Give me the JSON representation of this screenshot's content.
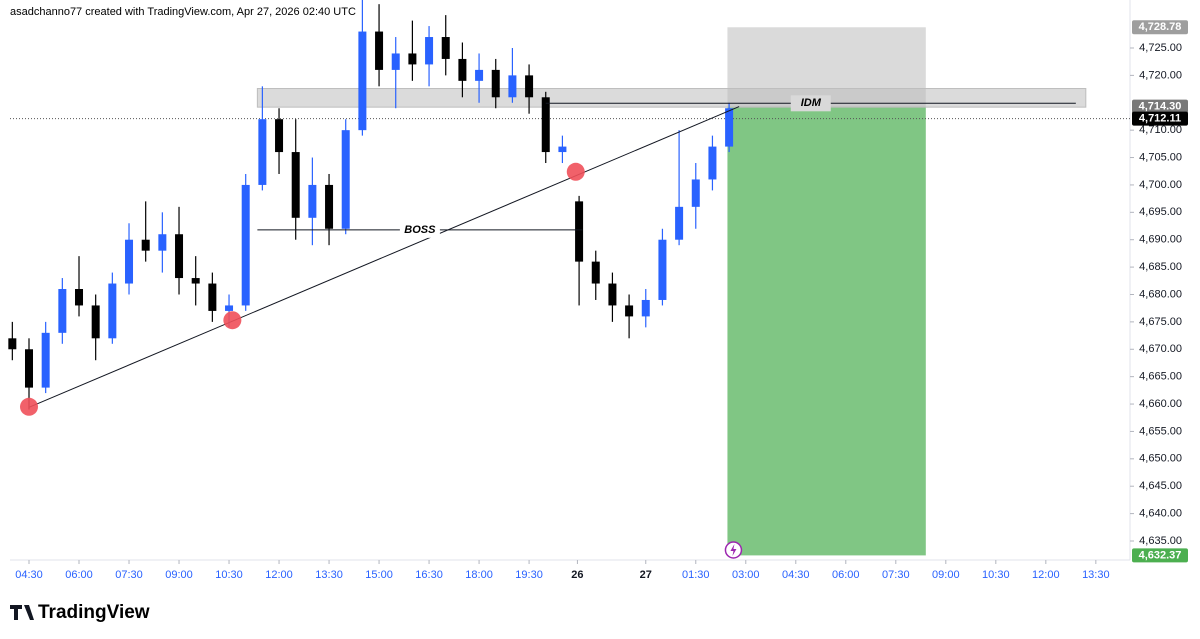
{
  "chart_data": {
    "type": "candlestick",
    "header": "asadchanno77 created with TradingView.com, Apr 27, 2026 02:40 UTC",
    "brand": "TradingView",
    "up_color": "#2962ff",
    "down_color": "#000000",
    "xlim": [
      -1.14,
      66.05
    ],
    "ylim": [
      4631.53,
      4733.76
    ],
    "xticks": [
      {
        "value": 0,
        "label": "04:30"
      },
      {
        "value": 3,
        "label": "06:00"
      },
      {
        "value": 6,
        "label": "07:30"
      },
      {
        "value": 9,
        "label": "09:00"
      },
      {
        "value": 12,
        "label": "10:30"
      },
      {
        "value": 15,
        "label": "12:00"
      },
      {
        "value": 18,
        "label": "13:30"
      },
      {
        "value": 21,
        "label": "15:00"
      },
      {
        "value": 24,
        "label": "16:30"
      },
      {
        "value": 27,
        "label": "18:00"
      },
      {
        "value": 30,
        "label": "19:30"
      },
      {
        "value": 32.9,
        "label": "26"
      },
      {
        "value": 37,
        "label": "27"
      },
      {
        "value": 40,
        "label": "01:30"
      },
      {
        "value": 43,
        "label": "03:00"
      },
      {
        "value": 46,
        "label": "04:30"
      },
      {
        "value": 49,
        "label": "06:00"
      },
      {
        "value": 52,
        "label": "07:30"
      },
      {
        "value": 55,
        "label": "09:00"
      },
      {
        "value": 58,
        "label": "10:30"
      },
      {
        "value": 61,
        "label": "12:00"
      },
      {
        "value": 64,
        "label": "13:30"
      }
    ],
    "yticks": [
      {
        "value": 4635,
        "label": "4,635.00"
      },
      {
        "value": 4640,
        "label": "4,640.00"
      },
      {
        "value": 4645,
        "label": "4,645.00"
      },
      {
        "value": 4650,
        "label": "4,650.00"
      },
      {
        "value": 4655,
        "label": "4,655.00"
      },
      {
        "value": 4660,
        "label": "4,660.00"
      },
      {
        "value": 4665,
        "label": "4,665.00"
      },
      {
        "value": 4670,
        "label": "4,670.00"
      },
      {
        "value": 4675,
        "label": "4,675.00"
      },
      {
        "value": 4680,
        "label": "4,680.00"
      },
      {
        "value": 4685,
        "label": "4,685.00"
      },
      {
        "value": 4690,
        "label": "4,690.00"
      },
      {
        "value": 4695,
        "label": "4,695.00"
      },
      {
        "value": 4700,
        "label": "4,700.00"
      },
      {
        "value": 4705,
        "label": "4,705.00"
      },
      {
        "value": 4710,
        "label": "4,710.00"
      },
      {
        "value": 4720,
        "label": "4,720.00"
      },
      {
        "value": 4725,
        "label": "4,725.00"
      }
    ],
    "price_labels": [
      {
        "value": 4728.78,
        "label": "4,728.78",
        "color": "#9e9e9e"
      },
      {
        "value": 4714.3,
        "label": "4,714.30",
        "color": "#787878"
      },
      {
        "value": 4712.11,
        "label": "4,712.11",
        "color": "#000000"
      },
      {
        "value": 4632.37,
        "label": "4,632.37",
        "color": "#4caf50"
      }
    ],
    "candles": {
      "x": [
        -1,
        0,
        1,
        2,
        3,
        4,
        5,
        6,
        7,
        8,
        9,
        10,
        11,
        12,
        13,
        14,
        15,
        16,
        17,
        18,
        19,
        20,
        21,
        22,
        23,
        24,
        25,
        26,
        27,
        28,
        29,
        30,
        31,
        32,
        33,
        34,
        35,
        36,
        37,
        38,
        39,
        40,
        41,
        42
      ],
      "open": [
        4672,
        4670,
        4663,
        4673,
        4681,
        4678,
        4672,
        4682,
        4690,
        4688,
        4691,
        4683,
        4682,
        4677,
        4678,
        4700,
        4712,
        4706,
        4694,
        4700,
        4692,
        4710,
        4728,
        4721,
        4724,
        4722,
        4727,
        4723,
        4719,
        4721,
        4716,
        4720,
        4716,
        4706,
        4697,
        4686,
        4682,
        4678,
        4676,
        4679,
        4690,
        4696,
        4701,
        4707
      ],
      "high": [
        4675,
        4672,
        4675,
        4683,
        4687,
        4680,
        4684,
        4693,
        4697,
        4695,
        4696,
        4687,
        4684,
        4680,
        4702,
        4718,
        4714,
        4712,
        4705,
        4702,
        4712,
        4734,
        4733,
        4727,
        4730,
        4729,
        4731,
        4726,
        4724,
        4723,
        4725,
        4722,
        4717,
        4709,
        4698,
        4688,
        4684,
        4680,
        4681,
        4692,
        4710,
        4704,
        4709,
        4715
      ],
      "low": [
        4668,
        4659,
        4662,
        4671,
        4676,
        4668,
        4671,
        4680,
        4686,
        4684,
        4680,
        4678,
        4675,
        4674,
        4677,
        4699,
        4702,
        4690,
        4689,
        4689,
        4691,
        4709,
        4718,
        4714,
        4719,
        4718,
        4720,
        4716,
        4715,
        4714,
        4715,
        4713,
        4704,
        4704,
        4678,
        4679,
        4675,
        4672,
        4674,
        4678,
        4689,
        4692,
        4699,
        4706
      ],
      "close": [
        4670,
        4663,
        4673,
        4681,
        4678,
        4672,
        4682,
        4690,
        4688,
        4691,
        4683,
        4682,
        4677,
        4678,
        4700,
        4712,
        4706,
        4694,
        4700,
        4692,
        4710,
        4728,
        4721,
        4724,
        4722,
        4727,
        4723,
        4719,
        4721,
        4716,
        4720,
        4716,
        4706,
        4707,
        4686,
        4682,
        4678,
        4676,
        4679,
        4690,
        4696,
        4701,
        4707,
        4714
      ]
    },
    "current_price": 4712.11,
    "zone": {
      "x": [
        13.7,
        63.4
      ],
      "y": [
        4714.2,
        4717.6
      ]
    },
    "idm": {
      "label": "IDM",
      "x": [
        31,
        62.8
      ],
      "y": 4714.9
    },
    "boss": {
      "label": "BOSS",
      "x": [
        13.7,
        33.2
      ],
      "y": 4691.8
    },
    "trendline": {
      "x": [
        0,
        42.6
      ],
      "y": [
        4659.4,
        4714.3
      ]
    },
    "pivots": {
      "x": [
        0,
        12.2,
        32.8
      ],
      "y": [
        4659.5,
        4675.3,
        4702.4
      ],
      "color": "#f0505a"
    },
    "position": {
      "x": [
        41.9,
        53.8
      ],
      "entry": 4714.3,
      "stop": 4728.78,
      "target": 4632.37,
      "stop_color": "#d6d6d6",
      "target_color": "#80c684"
    }
  }
}
